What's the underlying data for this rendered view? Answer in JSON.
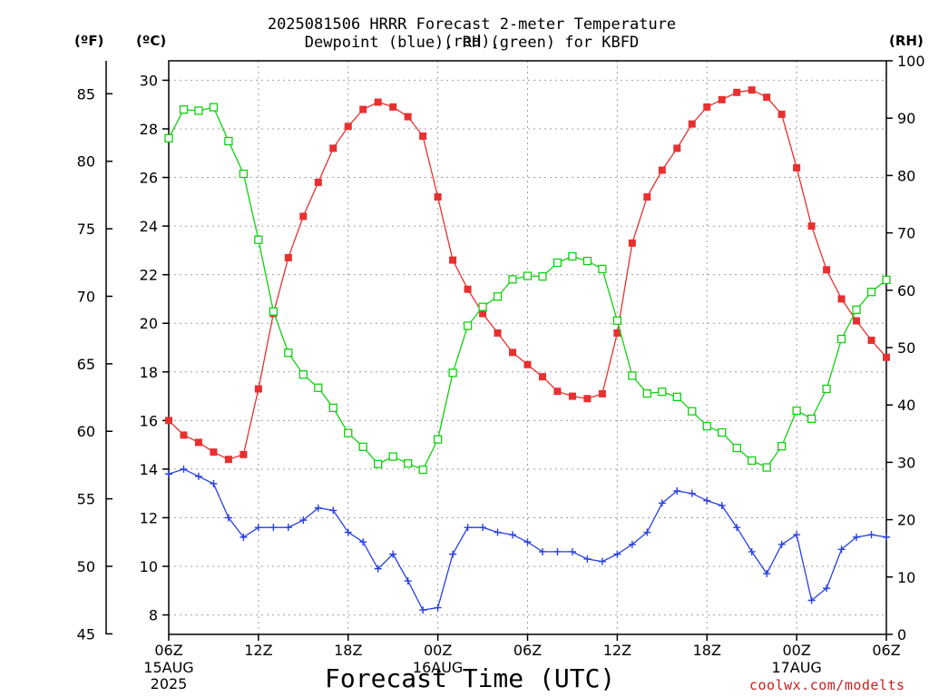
{
  "header": {
    "title_line1": "2025081506 HRRR Forecast 2-meter Temperature (red),",
    "title_line2": "Dewpoint (blue), RH (green) for KBFD",
    "unit_f": "(ºF)",
    "unit_c": "(ºC)",
    "unit_rh": "(RH)"
  },
  "footer": {
    "xlabel": "Forecast Time (UTC)",
    "credit": "coolwx.com/modelts"
  },
  "colors": {
    "temp": "#e83030",
    "dewpoint": "#2840e0",
    "rh": "#10d010",
    "grid": "#a0a0a0"
  },
  "chart_data": {
    "type": "line",
    "title": "2025081506 HRRR Forecast 2-meter Temperature (red), Dewpoint (blue), RH (green) for KBFD",
    "xlabel": "Forecast Time (UTC)",
    "x_hours": [
      0,
      1,
      2,
      3,
      4,
      5,
      6,
      7,
      8,
      9,
      10,
      11,
      12,
      13,
      14,
      15,
      16,
      17,
      18,
      19,
      20,
      21,
      22,
      23,
      24,
      25,
      26,
      27,
      28,
      29,
      30,
      31,
      32,
      33,
      34,
      35,
      36,
      37,
      38,
      39,
      40,
      41,
      42,
      43,
      44,
      45,
      46,
      47,
      48
    ],
    "x_ticks": [
      {
        "hour": 0,
        "label": "06Z",
        "sub": "15AUG",
        "sub2": "2025"
      },
      {
        "hour": 6,
        "label": "12Z",
        "sub": "",
        "sub2": ""
      },
      {
        "hour": 12,
        "label": "18Z",
        "sub": "",
        "sub2": ""
      },
      {
        "hour": 18,
        "label": "00Z",
        "sub": "16AUG",
        "sub2": ""
      },
      {
        "hour": 24,
        "label": "06Z",
        "sub": "",
        "sub2": ""
      },
      {
        "hour": 30,
        "label": "12Z",
        "sub": "",
        "sub2": ""
      },
      {
        "hour": 36,
        "label": "18Z",
        "sub": "",
        "sub2": ""
      },
      {
        "hour": 42,
        "label": "00Z",
        "sub": "17AUG",
        "sub2": ""
      },
      {
        "hour": 48,
        "label": "06Z",
        "sub": "",
        "sub2": ""
      }
    ],
    "axes": {
      "celsius": {
        "min": 7.2,
        "max": 30.8,
        "ticks": [
          8,
          10,
          12,
          14,
          16,
          18,
          20,
          22,
          24,
          26,
          28,
          30
        ]
      },
      "fahrenheit": {
        "ticks": [
          45,
          50,
          55,
          60,
          65,
          70,
          75,
          80,
          85
        ]
      },
      "rh": {
        "min": 0,
        "max": 100,
        "ticks": [
          0,
          10,
          20,
          30,
          40,
          50,
          60,
          70,
          80,
          90,
          100
        ]
      }
    },
    "grid": true,
    "series": [
      {
        "name": "Temperature",
        "unit": "C",
        "marker": "filled-square",
        "color_key": "temp",
        "values": [
          16.0,
          15.4,
          15.1,
          14.7,
          14.4,
          14.6,
          17.3,
          20.4,
          22.7,
          24.4,
          25.8,
          27.2,
          28.1,
          28.8,
          29.1,
          28.9,
          28.5,
          27.7,
          25.2,
          22.6,
          21.4,
          20.4,
          19.6,
          18.8,
          18.3,
          17.8,
          17.2,
          17.0,
          16.9,
          17.1,
          19.6,
          23.3,
          25.2,
          26.3,
          27.2,
          28.2,
          28.9,
          29.2,
          29.5,
          29.6,
          29.3,
          28.6,
          26.4,
          24.0,
          22.2,
          21.0,
          20.1,
          19.3,
          18.6
        ]
      },
      {
        "name": "Dewpoint",
        "unit": "C",
        "marker": "plus",
        "color_key": "dewpoint",
        "values": [
          13.8,
          14.0,
          13.7,
          13.4,
          12.0,
          11.2,
          11.6,
          11.6,
          11.6,
          11.9,
          12.4,
          12.3,
          11.4,
          11.0,
          9.9,
          10.5,
          9.4,
          8.2,
          8.3,
          10.5,
          11.6,
          11.6,
          11.4,
          11.3,
          11.0,
          10.6,
          10.6,
          10.6,
          10.3,
          10.2,
          10.5,
          10.9,
          11.4,
          12.6,
          13.1,
          13.0,
          12.7,
          12.5,
          11.6,
          10.6,
          9.7,
          10.9,
          11.3,
          8.6,
          9.1,
          10.7,
          11.2,
          11.3,
          11.2
        ]
      },
      {
        "name": "RH",
        "unit": "%",
        "marker": "open-square",
        "color_key": "rh",
        "values": [
          86.5,
          91.5,
          91.3,
          91.9,
          86.0,
          80.3,
          68.8,
          56.3,
          49.1,
          45.3,
          43.0,
          39.5,
          35.1,
          32.7,
          29.7,
          31.0,
          29.8,
          28.7,
          34.0,
          45.6,
          53.8,
          57.1,
          58.9,
          61.9,
          62.5,
          62.4,
          64.8,
          65.9,
          65.1,
          63.7,
          54.7,
          45.1,
          42.0,
          42.3,
          41.4,
          38.9,
          36.3,
          35.2,
          32.5,
          30.3,
          29.1,
          32.8,
          39.0,
          37.6,
          42.8,
          51.5,
          56.6,
          59.7,
          61.8
        ]
      }
    ]
  }
}
